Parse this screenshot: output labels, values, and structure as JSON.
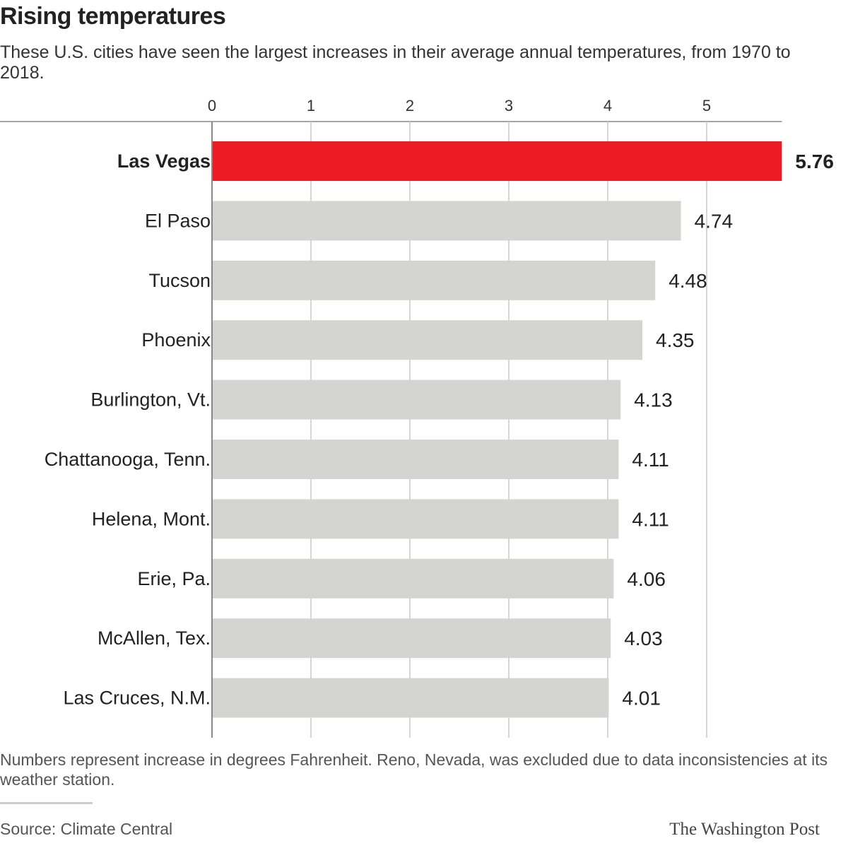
{
  "header": {
    "title": "Rising temperatures",
    "subtitle": "These U.S. cities have seen the largest increases in their average annual temperatures, from 1970 to 2018."
  },
  "footer": {
    "note": "Numbers represent increase in degrees Fahrenheit. Reno, Nevada, was excluded due to data inconsistencies at its weather station.",
    "source": "Source: Climate Central",
    "credit": "The Washington Post"
  },
  "chart_data": {
    "type": "bar",
    "orientation": "horizontal",
    "categories": [
      "Las Vegas",
      "El Paso",
      "Tucson",
      "Phoenix",
      "Burlington, Vt.",
      "Chattanooga, Tenn.",
      "Helena, Mont.",
      "Erie, Pa.",
      "McAllen, Tex.",
      "Las Cruces, N.M."
    ],
    "values": [
      5.76,
      4.74,
      4.48,
      4.35,
      4.13,
      4.11,
      4.11,
      4.06,
      4.03,
      4.01
    ],
    "value_labels": [
      "5.76",
      "4.74",
      "4.48",
      "4.35",
      "4.13",
      "4.11",
      "4.11",
      "4.06",
      "4.03",
      "4.01"
    ],
    "highlight_index": 0,
    "x_ticks": [
      0,
      1,
      2,
      3,
      4,
      5
    ],
    "x_tick_labels": [
      "0",
      "1",
      "2",
      "3",
      "4",
      "5"
    ],
    "xlim": [
      0,
      5.76
    ],
    "x_axis_position": "top",
    "grid": true,
    "colors": {
      "highlight": "#ed1c24",
      "bar": "#d4d4d0",
      "grid": "#c8c8c8",
      "axis": "#888888",
      "label": "#222222"
    }
  }
}
